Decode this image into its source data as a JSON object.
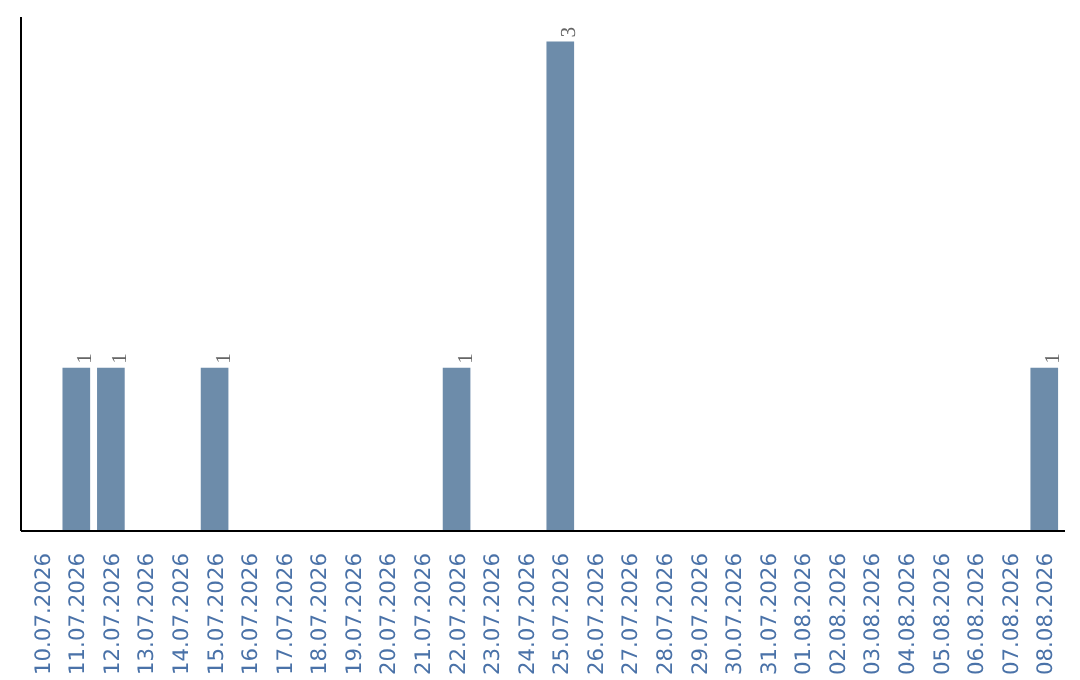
{
  "chart_data": {
    "type": "bar",
    "categories": [
      "10.07.2026",
      "11.07.2026",
      "12.07.2026",
      "13.07.2026",
      "14.07.2026",
      "15.07.2026",
      "16.07.2026",
      "17.07.2026",
      "18.07.2026",
      "19.07.2026",
      "20.07.2026",
      "21.07.2026",
      "22.07.2026",
      "23.07.2026",
      "24.07.2026",
      "25.07.2026",
      "26.07.2026",
      "27.07.2026",
      "28.07.2026",
      "29.07.2026",
      "30.07.2026",
      "31.07.2026",
      "01.08.2026",
      "02.08.2026",
      "03.08.2026",
      "04.08.2026",
      "05.08.2026",
      "06.08.2026",
      "07.08.2026",
      "08.08.2026"
    ],
    "values": [
      0,
      1,
      1,
      0,
      0,
      1,
      0,
      0,
      0,
      0,
      0,
      0,
      1,
      0,
      0,
      3,
      0,
      0,
      0,
      0,
      0,
      0,
      0,
      0,
      0,
      0,
      0,
      0,
      0,
      1
    ],
    "value_labels": [
      null,
      "1",
      "1",
      null,
      null,
      "1",
      null,
      null,
      null,
      null,
      null,
      null,
      "1",
      null,
      null,
      "3",
      null,
      null,
      null,
      null,
      null,
      null,
      null,
      null,
      null,
      null,
      null,
      null,
      null,
      "1"
    ],
    "color": "#6d8caa"
  }
}
